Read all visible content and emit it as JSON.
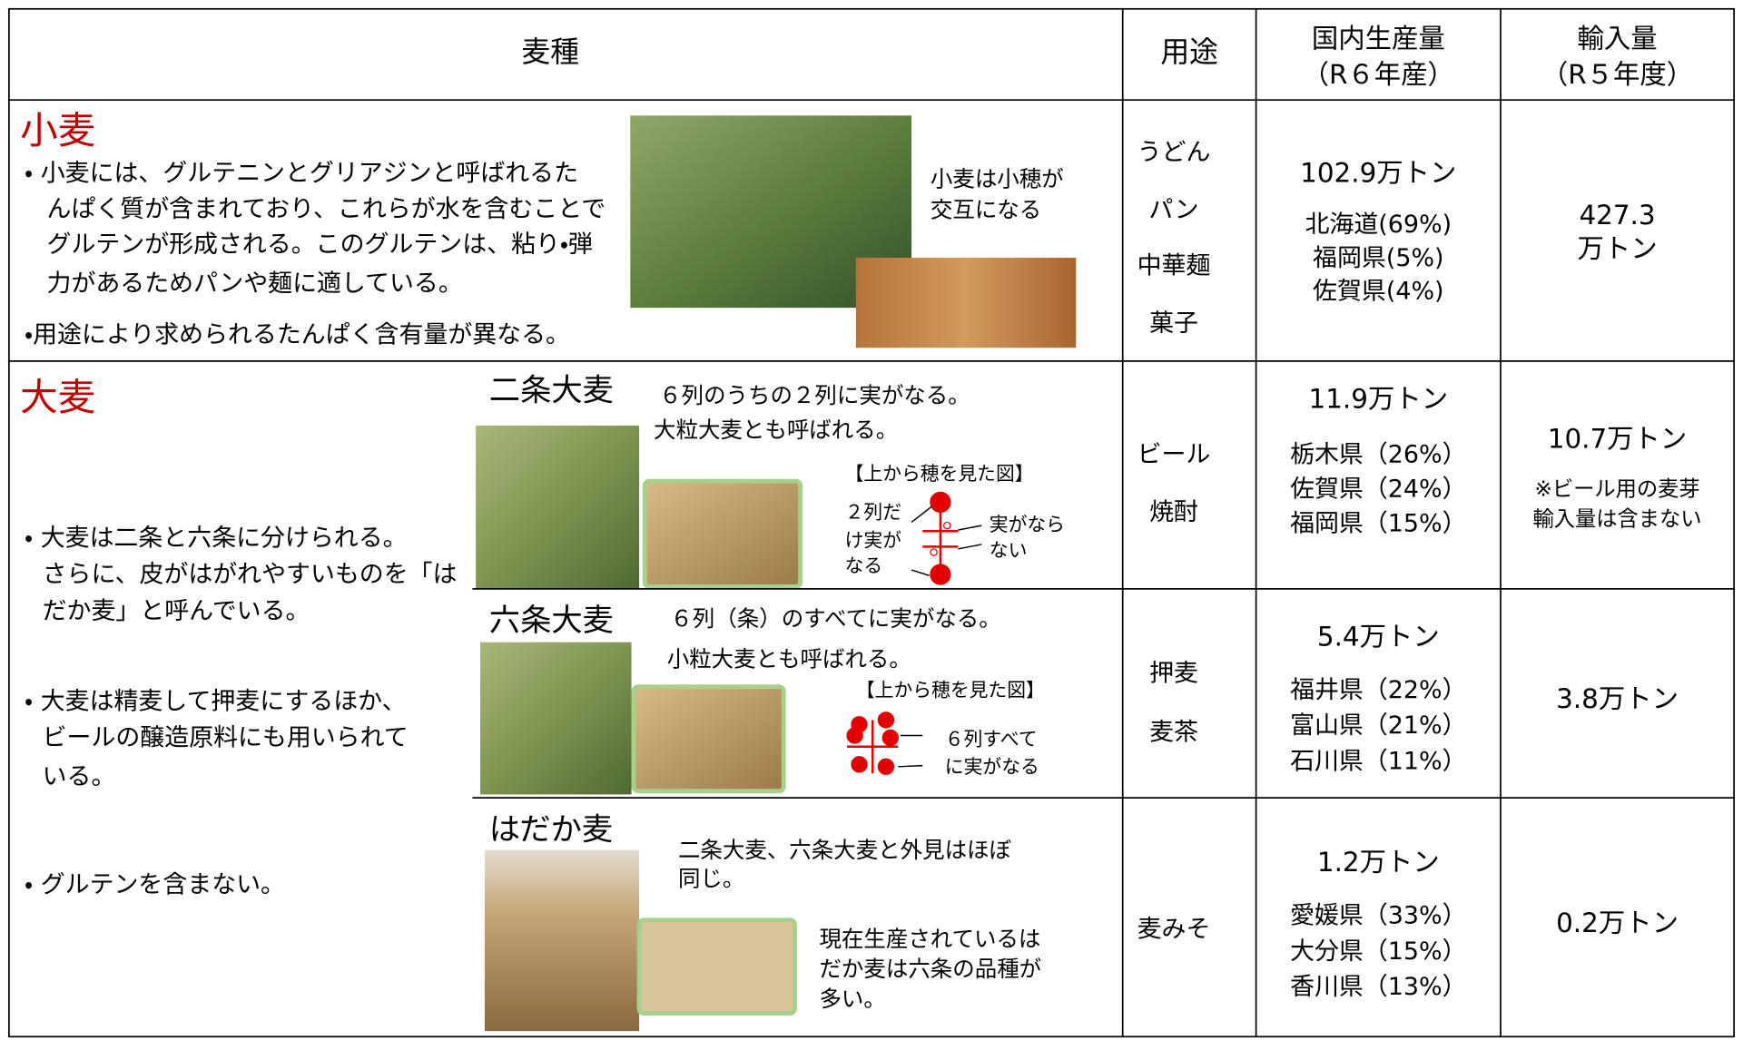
{
  "table": {
    "header": {
      "species": "麦種",
      "uses": "用途",
      "production": [
        "国内生産量",
        "（R６年産）"
      ],
      "imports": [
        "輸入量",
        "（R５年度）"
      ]
    },
    "wheat": {
      "name": "小麦",
      "bullets": [
        [
          "・ 小麦には、グルテニンとグリアジンと呼ばれるた",
          "んぱく質が含まれており、これらが水を含むことで",
          "グルテンが形成される。このグルテンは、粘り・弾",
          "力があるためパンや麺に適している。"
        ],
        [
          "・用途により求められるたんぱく含有量が異なる。"
        ]
      ],
      "caption": [
        "小麦は小穂が",
        "交互になる"
      ],
      "uses": [
        "うどん",
        "パン",
        "中華麺",
        "菓子"
      ],
      "production": "102.9万トン",
      "regions": [
        "北海道(69%)",
        "福岡県(5%)",
        "佐賀県(4%)"
      ],
      "imports": [
        "427.3",
        "万トン"
      ]
    },
    "barley": {
      "name": "大麦",
      "bullets": [
        [
          "・  大麦は二条と六条に分けられる。",
          "さらに、皮がはがれやすいものを「は",
          "だか麦」と呼んでいる。"
        ],
        [
          "・  大麦は精麦して押麦にするほか、",
          "ビールの醸造原料にも用いられて",
          "いる。"
        ],
        [
          "・  グルテンを含まない。"
        ]
      ],
      "varieties": [
        {
          "name": "二条大麦",
          "description": [
            "６列のうちの２列に実がなる。",
            "大粒大麦とも呼ばれる。"
          ],
          "diagram_title": "【上から穂を見た図】",
          "diagram_labels": [
            [
              "２列だ",
              "け実が",
              "なる"
            ],
            [
              "実がなら",
              "ない"
            ]
          ],
          "uses": [
            "ビール",
            "焼酎"
          ],
          "production": "11.9万トン",
          "regions": [
            "栃木県（26%）",
            "佐賀県（24%）",
            "福岡県（15%）"
          ],
          "imports": "10.7万トン",
          "imports_note": [
            "※ビール用の麦芽",
            "輸入量は含まない"
          ]
        },
        {
          "name": "六条大麦",
          "description": [
            "６列（条）のすべてに実がなる。",
            "小粒大麦とも呼ばれる。"
          ],
          "diagram_title": "【上から穂を見た図】",
          "diagram_labels": [
            [
              "６列すべて",
              "に実がなる"
            ]
          ],
          "uses": [
            "押麦",
            "麦茶"
          ],
          "production": "5.4万トン",
          "regions": [
            "福井県（22%）",
            "富山県（21%）",
            "石川県（11%）"
          ],
          "imports": "3.8万トン"
        },
        {
          "name": "はだか麦",
          "description": [
            "二条大麦、六条大麦と外見はほぼ",
            "同じ。"
          ],
          "note": [
            "現在生産されているは",
            "だか麦は六条の品種が",
            "多い。"
          ],
          "uses": [
            "麦みそ"
          ],
          "production": "1.2万トン",
          "regions": [
            "愛媛県（33%）",
            "大分県（15%）",
            "香川県（13%）"
          ],
          "imports": "0.2万トン"
        }
      ]
    }
  }
}
